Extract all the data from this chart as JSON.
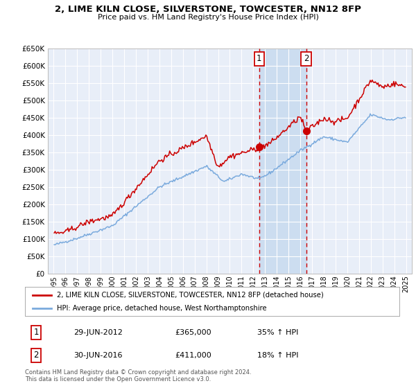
{
  "title": "2, LIME KILN CLOSE, SILVERSTONE, TOWCESTER, NN12 8FP",
  "subtitle": "Price paid vs. HM Land Registry's House Price Index (HPI)",
  "property_label": "2, LIME KILN CLOSE, SILVERSTONE, TOWCESTER, NN12 8FP (detached house)",
  "hpi_label": "HPI: Average price, detached house, West Northamptonshire",
  "property_color": "#cc0000",
  "hpi_color": "#7aaadd",
  "sale1_date": "29-JUN-2012",
  "sale1_price": 365000,
  "sale1_pct": "35% ↑ HPI",
  "sale2_date": "30-JUN-2016",
  "sale2_price": 411000,
  "sale2_pct": "18% ↑ HPI",
  "sale1_year": 2012.5,
  "sale2_year": 2016.5,
  "ylim": [
    0,
    650000
  ],
  "yticks": [
    0,
    50000,
    100000,
    150000,
    200000,
    250000,
    300000,
    350000,
    400000,
    450000,
    500000,
    550000,
    600000,
    650000
  ],
  "xlim": [
    1994.5,
    2025.5
  ],
  "footer1": "Contains HM Land Registry data © Crown copyright and database right 2024.",
  "footer2": "This data is licensed under the Open Government Licence v3.0.",
  "fig_bg": "#f4f4f4",
  "plot_bg": "#e8eef8",
  "grid_color": "#ffffff",
  "shade_color": "#ccddf0",
  "box_color": "#cc0000"
}
